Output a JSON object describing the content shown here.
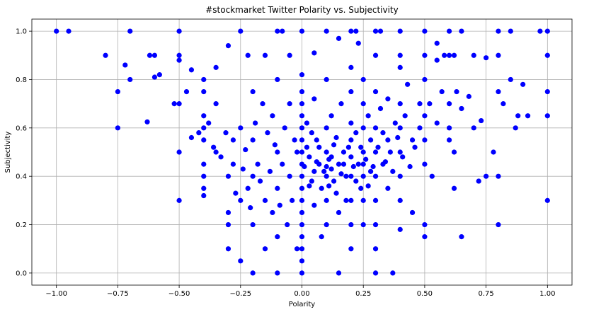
{
  "chart_data": {
    "type": "scatter",
    "title": "#stockmarket Twitter Polarity vs. Subjectivity",
    "xlabel": "Polarity",
    "ylabel": "Subjectivity",
    "xlim": [
      -1.1,
      1.1
    ],
    "ylim": [
      -0.05,
      1.05
    ],
    "xticks": [
      -1.0,
      -0.75,
      -0.5,
      -0.25,
      0.0,
      0.25,
      0.5,
      0.75,
      1.0
    ],
    "xtick_labels": [
      "−1.00",
      "−0.75",
      "−0.50",
      "−0.25",
      "0.00",
      "0.25",
      "0.50",
      "0.75",
      "1.00"
    ],
    "yticks": [
      0.0,
      0.2,
      0.4,
      0.6,
      0.8,
      1.0
    ],
    "ytick_labels": [
      "0.0",
      "0.2",
      "0.4",
      "0.6",
      "0.8",
      "1.0"
    ],
    "grid": true,
    "marker_color": "#0000ff",
    "points": [
      [
        -1.0,
        1.0
      ],
      [
        -0.95,
        1.0
      ],
      [
        -0.7,
        1.0
      ],
      [
        -0.5,
        1.0
      ],
      [
        -0.25,
        1.0
      ],
      [
        -0.1,
        1.0
      ],
      [
        -0.08,
        1.0
      ],
      [
        0.0,
        1.0
      ],
      [
        0.1,
        1.0
      ],
      [
        0.2,
        1.0
      ],
      [
        0.22,
        1.0
      ],
      [
        0.3,
        1.0
      ],
      [
        0.32,
        1.0
      ],
      [
        0.4,
        1.0
      ],
      [
        0.5,
        1.0
      ],
      [
        0.6,
        1.0
      ],
      [
        0.65,
        1.0
      ],
      [
        0.8,
        1.0
      ],
      [
        0.85,
        1.0
      ],
      [
        0.97,
        1.0
      ],
      [
        1.0,
        1.0
      ],
      [
        -0.8,
        0.9
      ],
      [
        -0.62,
        0.9
      ],
      [
        -0.6,
        0.9
      ],
      [
        -0.5,
        0.9
      ],
      [
        -0.22,
        0.9
      ],
      [
        -0.15,
        0.9
      ],
      [
        -0.05,
        0.9
      ],
      [
        0.3,
        0.9
      ],
      [
        0.4,
        0.9
      ],
      [
        0.5,
        0.9
      ],
      [
        0.6,
        0.9
      ],
      [
        0.62,
        0.9
      ],
      [
        0.7,
        0.9
      ],
      [
        0.8,
        0.9
      ],
      [
        1.0,
        0.9
      ],
      [
        -0.72,
        0.86
      ],
      [
        -0.7,
        0.8
      ],
      [
        -0.6,
        0.81
      ],
      [
        -0.58,
        0.82
      ],
      [
        -0.45,
        0.84
      ],
      [
        -0.5,
        0.88
      ],
      [
        -0.35,
        0.85
      ],
      [
        -0.3,
        0.94
      ],
      [
        0.05,
        0.91
      ],
      [
        0.15,
        0.97
      ],
      [
        0.23,
        0.95
      ],
      [
        0.55,
        0.95
      ],
      [
        0.58,
        0.9
      ],
      [
        0.75,
        0.89
      ],
      [
        0.9,
        0.78
      ],
      [
        -0.75,
        0.75
      ],
      [
        -0.63,
        0.625
      ],
      [
        -0.52,
        0.7
      ],
      [
        -0.5,
        0.7
      ],
      [
        -0.47,
        0.75
      ],
      [
        -0.75,
        0.6
      ],
      [
        -0.5,
        0.5
      ],
      [
        -0.5,
        0.3
      ],
      [
        -0.4,
        0.8
      ],
      [
        -0.4,
        0.75
      ],
      [
        -0.4,
        0.65
      ],
      [
        -0.4,
        0.6
      ],
      [
        -0.4,
        0.55
      ],
      [
        -0.4,
        0.45
      ],
      [
        -0.4,
        0.4
      ],
      [
        -0.4,
        0.35
      ],
      [
        -0.4,
        0.32
      ],
      [
        -0.38,
        0.62
      ],
      [
        -0.35,
        0.7
      ],
      [
        -0.35,
        0.5
      ],
      [
        -0.3,
        0.4
      ],
      [
        -0.3,
        0.25
      ],
      [
        -0.3,
        0.2
      ],
      [
        -0.3,
        0.1
      ],
      [
        -0.28,
        0.45
      ],
      [
        -0.28,
        0.55
      ],
      [
        -0.25,
        0.6
      ],
      [
        -0.25,
        0.3
      ],
      [
        -0.25,
        0.05
      ],
      [
        -0.22,
        0.35
      ],
      [
        -0.2,
        0.75
      ],
      [
        -0.2,
        0.55
      ],
      [
        -0.2,
        0.4
      ],
      [
        -0.2,
        0.2
      ],
      [
        -0.2,
        0.0
      ],
      [
        -0.18,
        0.45
      ],
      [
        -0.16,
        0.7
      ],
      [
        -0.15,
        0.3
      ],
      [
        -0.15,
        0.1
      ],
      [
        -0.14,
        0.58
      ],
      [
        -0.12,
        0.65
      ],
      [
        -0.12,
        0.25
      ],
      [
        -0.1,
        0.8
      ],
      [
        -0.1,
        0.5
      ],
      [
        -0.1,
        0.35
      ],
      [
        -0.1,
        0.15
      ],
      [
        -0.1,
        0.0
      ],
      [
        -0.08,
        0.45
      ],
      [
        -0.07,
        0.6
      ],
      [
        -0.06,
        0.2
      ],
      [
        -0.05,
        0.7
      ],
      [
        -0.05,
        0.4
      ],
      [
        -0.04,
        0.3
      ],
      [
        -0.03,
        0.55
      ],
      [
        -0.02,
        0.5
      ],
      [
        -0.02,
        0.1
      ],
      [
        0.0,
        0.82
      ],
      [
        0.0,
        0.75
      ],
      [
        0.0,
        0.7
      ],
      [
        0.0,
        0.65
      ],
      [
        0.0,
        0.6
      ],
      [
        0.0,
        0.55
      ],
      [
        0.0,
        0.5
      ],
      [
        0.0,
        0.45
      ],
      [
        0.0,
        0.4
      ],
      [
        0.0,
        0.35
      ],
      [
        0.0,
        0.3
      ],
      [
        0.0,
        0.25
      ],
      [
        0.0,
        0.2
      ],
      [
        0.0,
        0.15
      ],
      [
        0.0,
        0.1
      ],
      [
        0.0,
        0.05
      ],
      [
        0.0,
        0.0
      ],
      [
        0.02,
        0.62
      ],
      [
        0.03,
        0.48
      ],
      [
        0.04,
        0.38
      ],
      [
        0.05,
        0.72
      ],
      [
        0.05,
        0.42
      ],
      [
        0.05,
        0.28
      ],
      [
        0.06,
        0.55
      ],
      [
        0.07,
        0.45
      ],
      [
        0.08,
        0.35
      ],
      [
        0.08,
        0.15
      ],
      [
        0.1,
        0.8
      ],
      [
        0.1,
        0.6
      ],
      [
        0.1,
        0.5
      ],
      [
        0.1,
        0.44
      ],
      [
        0.1,
        0.4
      ],
      [
        0.1,
        0.3
      ],
      [
        0.1,
        0.2
      ],
      [
        0.12,
        0.65
      ],
      [
        0.12,
        0.48
      ],
      [
        0.13,
        0.38
      ],
      [
        0.14,
        0.56
      ],
      [
        0.15,
        0.45
      ],
      [
        0.15,
        0.25
      ],
      [
        0.15,
        0.0
      ],
      [
        0.16,
        0.7
      ],
      [
        0.17,
        0.5
      ],
      [
        0.18,
        0.4
      ],
      [
        0.18,
        0.3
      ],
      [
        0.2,
        0.85
      ],
      [
        0.2,
        0.75
      ],
      [
        0.2,
        0.62
      ],
      [
        0.2,
        0.55
      ],
      [
        0.2,
        0.48
      ],
      [
        0.2,
        0.4
      ],
      [
        0.2,
        0.3
      ],
      [
        0.2,
        0.2
      ],
      [
        0.2,
        0.1
      ],
      [
        0.22,
        0.58
      ],
      [
        0.23,
        0.45
      ],
      [
        0.24,
        0.35
      ],
      [
        0.25,
        0.8
      ],
      [
        0.25,
        0.7
      ],
      [
        0.25,
        0.6
      ],
      [
        0.25,
        0.5
      ],
      [
        0.25,
        0.45
      ],
      [
        0.25,
        0.4
      ],
      [
        0.25,
        0.3
      ],
      [
        0.25,
        0.2
      ],
      [
        0.27,
        0.65
      ],
      [
        0.28,
        0.55
      ],
      [
        0.28,
        0.42
      ],
      [
        0.3,
        0.75
      ],
      [
        0.3,
        0.6
      ],
      [
        0.3,
        0.5
      ],
      [
        0.3,
        0.4
      ],
      [
        0.3,
        0.3
      ],
      [
        0.3,
        0.2
      ],
      [
        0.3,
        0.1
      ],
      [
        0.3,
        0.0
      ],
      [
        0.32,
        0.68
      ],
      [
        0.33,
        0.45
      ],
      [
        0.35,
        0.72
      ],
      [
        0.35,
        0.55
      ],
      [
        0.35,
        0.35
      ],
      [
        0.37,
        0.0
      ],
      [
        0.38,
        0.62
      ],
      [
        0.4,
        0.85
      ],
      [
        0.4,
        0.7
      ],
      [
        0.4,
        0.6
      ],
      [
        0.4,
        0.5
      ],
      [
        0.4,
        0.4
      ],
      [
        0.4,
        0.3
      ],
      [
        0.4,
        0.18
      ],
      [
        0.42,
        0.65
      ],
      [
        0.43,
        0.78
      ],
      [
        0.45,
        0.55
      ],
      [
        0.45,
        0.25
      ],
      [
        0.48,
        0.7
      ],
      [
        0.48,
        0.6
      ],
      [
        0.5,
        0.8
      ],
      [
        0.5,
        0.65
      ],
      [
        0.5,
        0.55
      ],
      [
        0.5,
        0.45
      ],
      [
        0.5,
        0.2
      ],
      [
        0.5,
        0.15
      ],
      [
        0.52,
        0.7
      ],
      [
        0.53,
        0.4
      ],
      [
        0.55,
        0.88
      ],
      [
        0.55,
        0.62
      ],
      [
        0.57,
        0.75
      ],
      [
        0.6,
        0.7
      ],
      [
        0.6,
        0.6
      ],
      [
        0.6,
        0.55
      ],
      [
        0.62,
        0.5
      ],
      [
        0.62,
        0.35
      ],
      [
        0.63,
        0.75
      ],
      [
        0.65,
        0.68
      ],
      [
        0.65,
        0.15
      ],
      [
        0.68,
        0.73
      ],
      [
        0.7,
        0.6
      ],
      [
        0.72,
        0.38
      ],
      [
        0.73,
        0.63
      ],
      [
        0.75,
        0.4
      ],
      [
        0.78,
        0.5
      ],
      [
        0.8,
        0.75
      ],
      [
        0.8,
        0.4
      ],
      [
        0.8,
        0.2
      ],
      [
        0.82,
        0.7
      ],
      [
        0.85,
        0.8
      ],
      [
        0.87,
        0.6
      ],
      [
        0.88,
        0.65
      ],
      [
        0.92,
        0.65
      ],
      [
        1.0,
        0.75
      ],
      [
        1.0,
        0.65
      ],
      [
        1.0,
        0.3
      ],
      [
        -0.45,
        0.56
      ],
      [
        -0.42,
        0.58
      ],
      [
        -0.36,
        0.52
      ],
      [
        -0.33,
        0.48
      ],
      [
        -0.31,
        0.58
      ],
      [
        -0.27,
        0.33
      ],
      [
        -0.24,
        0.43
      ],
      [
        -0.23,
        0.51
      ],
      [
        -0.21,
        0.27
      ],
      [
        -0.19,
        0.62
      ],
      [
        -0.17,
        0.38
      ],
      [
        -0.13,
        0.42
      ],
      [
        -0.11,
        0.53
      ],
      [
        -0.09,
        0.28
      ],
      [
        0.01,
        0.44
      ],
      [
        0.02,
        0.52
      ],
      [
        0.03,
        0.36
      ],
      [
        0.04,
        0.58
      ],
      [
        0.06,
        0.46
      ],
      [
        0.07,
        0.52
      ],
      [
        0.09,
        0.42
      ],
      [
        0.11,
        0.47
      ],
      [
        0.11,
        0.36
      ],
      [
        0.12,
        0.43
      ],
      [
        0.13,
        0.53
      ],
      [
        0.14,
        0.33
      ],
      [
        0.16,
        0.41
      ],
      [
        0.17,
        0.45
      ],
      [
        0.19,
        0.52
      ],
      [
        0.21,
        0.44
      ],
      [
        0.22,
        0.38
      ],
      [
        0.24,
        0.52
      ],
      [
        0.26,
        0.47
      ],
      [
        0.27,
        0.36
      ],
      [
        0.29,
        0.44
      ],
      [
        0.31,
        0.52
      ],
      [
        0.33,
        0.58
      ],
      [
        0.34,
        0.46
      ],
      [
        0.36,
        0.5
      ],
      [
        0.37,
        0.42
      ],
      [
        0.39,
        0.56
      ],
      [
        0.41,
        0.48
      ],
      [
        0.44,
        0.44
      ],
      [
        0.46,
        0.52
      ]
    ]
  }
}
